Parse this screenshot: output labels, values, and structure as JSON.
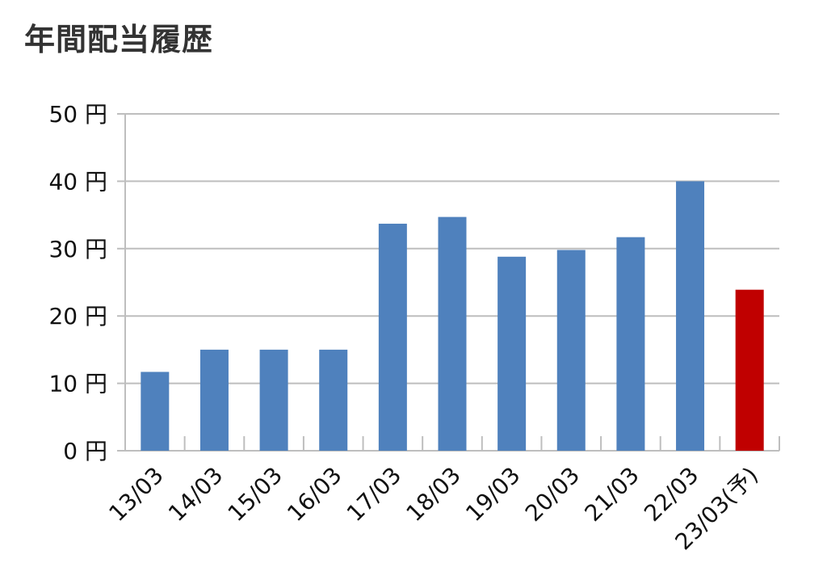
{
  "title": "年間配当履歴",
  "chart_data": {
    "type": "bar",
    "title": "年間配当履歴",
    "xlabel": "",
    "ylabel": "",
    "unit": "円",
    "ylim": [
      0,
      50
    ],
    "yticks": [
      0,
      10,
      20,
      30,
      40,
      50
    ],
    "ytick_labels": [
      "0 円",
      "10 円",
      "20 円",
      "30 円",
      "40 円",
      "50 円"
    ],
    "grid": true,
    "categories": [
      "13/03",
      "14/03",
      "15/03",
      "16/03",
      "17/03",
      "18/03",
      "19/03",
      "20/03",
      "21/03",
      "22/03",
      "23/03(予)"
    ],
    "values": [
      11.7,
      15,
      15,
      15,
      33.7,
      34.7,
      28.8,
      29.8,
      31.7,
      40,
      23.9
    ],
    "colors": [
      "#4F81BD",
      "#4F81BD",
      "#4F81BD",
      "#4F81BD",
      "#4F81BD",
      "#4F81BD",
      "#4F81BD",
      "#4F81BD",
      "#4F81BD",
      "#4F81BD",
      "#C00000"
    ]
  }
}
